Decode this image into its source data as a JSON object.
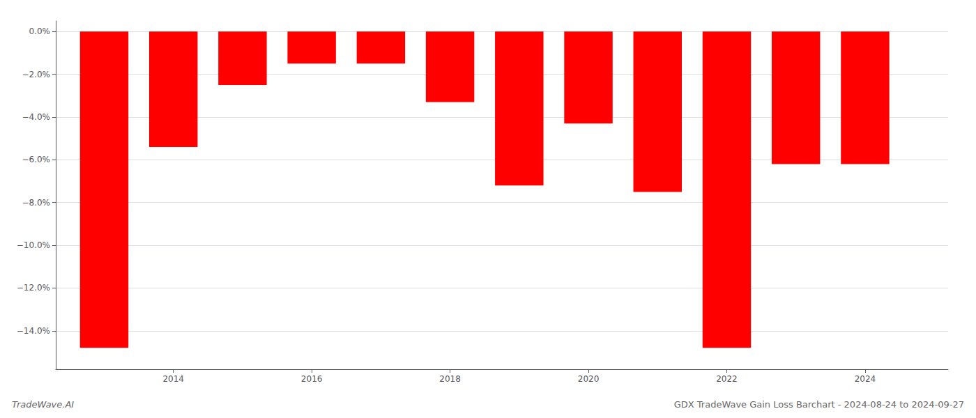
{
  "chart_data": {
    "type": "bar",
    "title": "GDX TradeWave Gain Loss Barchart - 2024-08-24 to 2024-09-27",
    "annotations": [
      "TradeWave.AI"
    ],
    "x": [
      2013,
      2014,
      2015,
      2016,
      2017,
      2018,
      2019,
      2020,
      2021,
      2022,
      2023,
      2024
    ],
    "values": [
      -14.8,
      -5.4,
      -2.5,
      -1.5,
      -1.5,
      -3.3,
      -7.2,
      -4.3,
      -7.5,
      -14.8,
      -6.2,
      -6.2
    ],
    "color": "#ff0000",
    "xlim": [
      2012.3,
      2025.2
    ],
    "xticks": [
      2014,
      2016,
      2018,
      2020,
      2022,
      2024
    ],
    "ylim": [
      -15.8,
      0.5
    ],
    "yticks": [
      {
        "value": 0.0,
        "label": "0.0%"
      },
      {
        "value": -2.0,
        "label": "−2.0%"
      },
      {
        "value": -4.0,
        "label": "−4.0%"
      },
      {
        "value": -6.0,
        "label": "−6.0%"
      },
      {
        "value": -8.0,
        "label": "−8.0%"
      },
      {
        "value": -10.0,
        "label": "−10.0%"
      },
      {
        "value": -12.0,
        "label": "−12.0%"
      },
      {
        "value": -14.0,
        "label": "−14.0%"
      }
    ],
    "grid": true
  }
}
